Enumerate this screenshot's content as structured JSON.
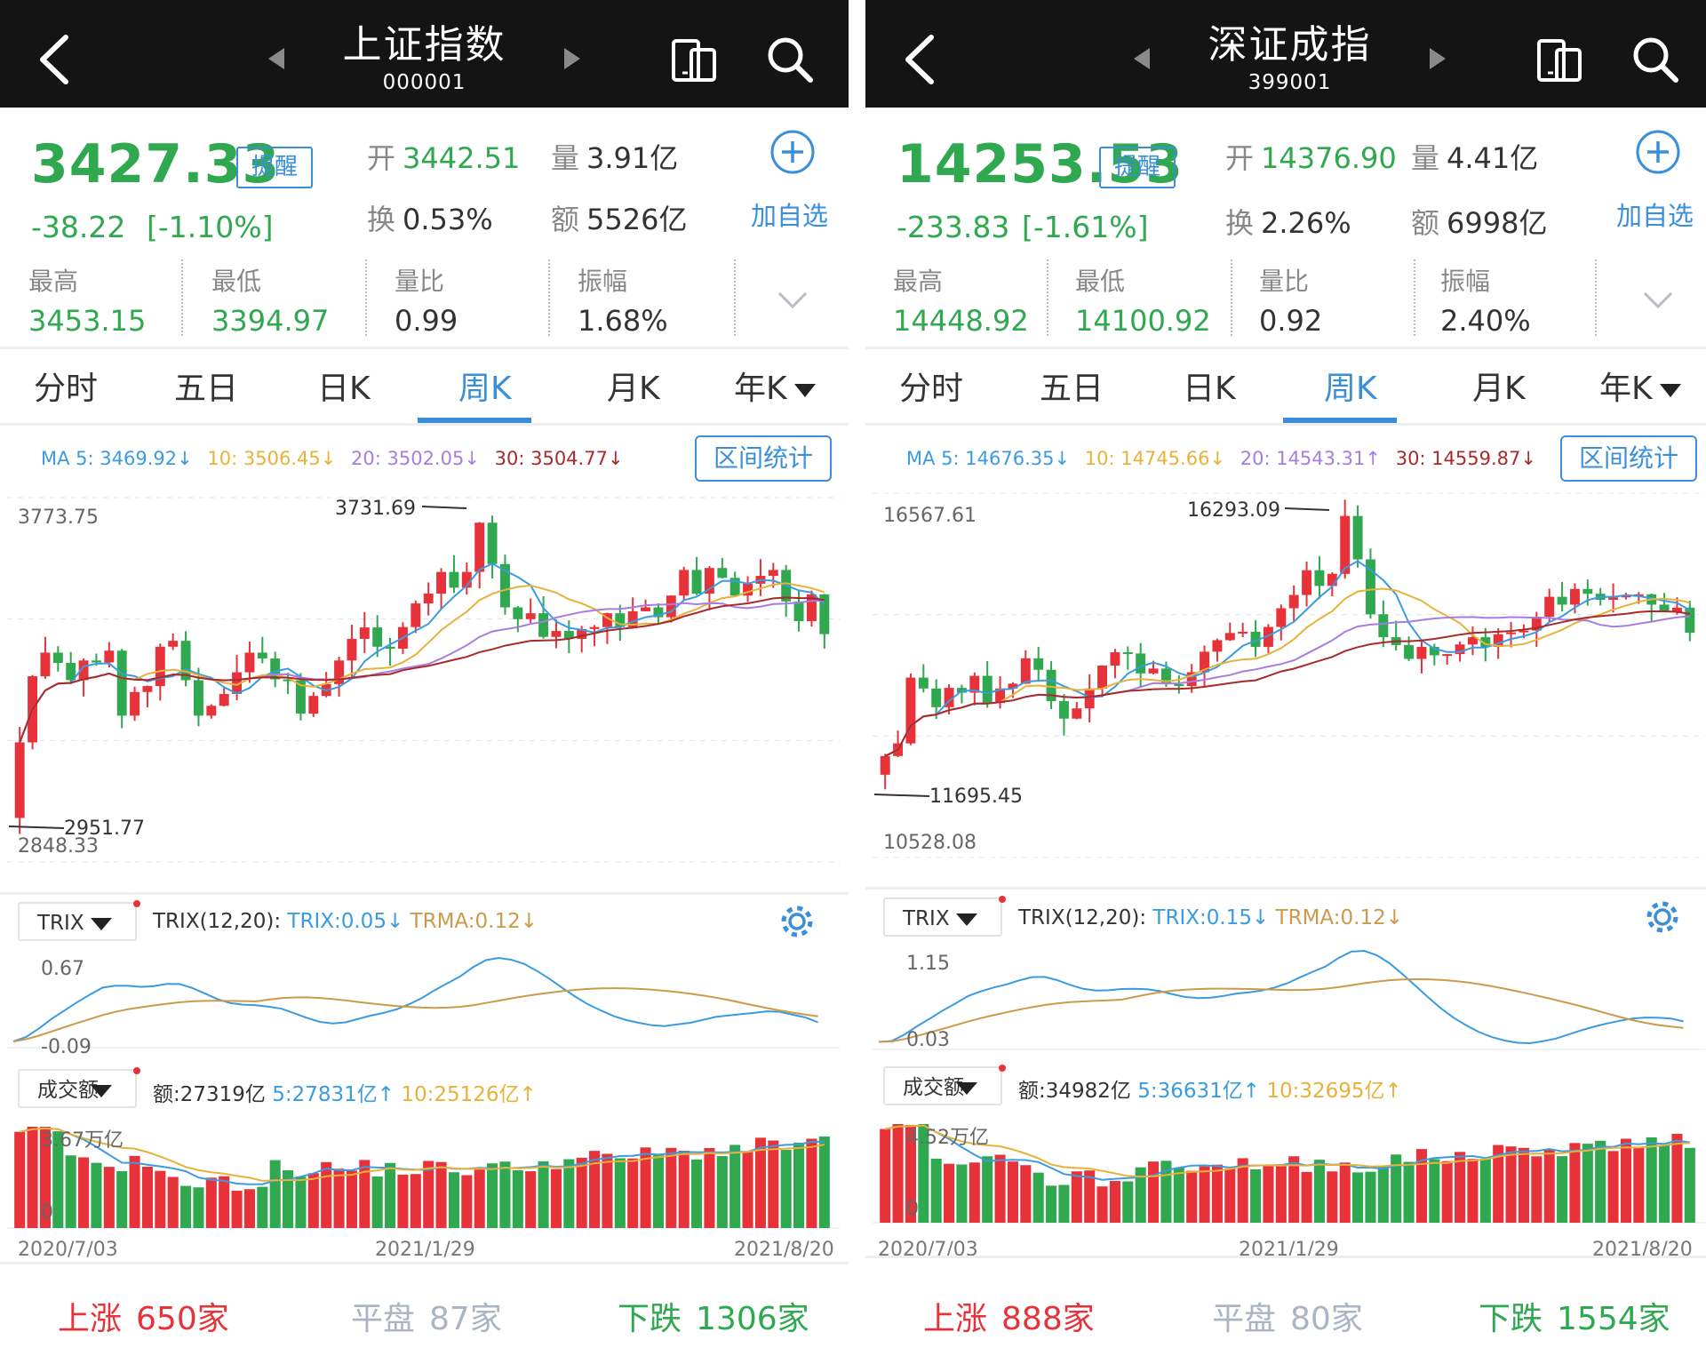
{
  "colors": {
    "up": "#e8323a",
    "down": "#2fa84f",
    "accent": "#3a8fd8",
    "ma5": "#3a9be0",
    "ma10": "#e8b23a",
    "ma20": "#a67de0",
    "ma30": "#a82a2a",
    "trix": "#3a9be0",
    "trma": "#cc9a4a"
  },
  "tabs": [
    "分时",
    "五日",
    "日K",
    "周K",
    "月K",
    "年K"
  ],
  "active_tab": "周K",
  "panels": [
    {
      "title": "上证指数",
      "code": "000001",
      "price": "3427.33",
      "remind": "提醒",
      "change": "-38.22",
      "change_pct": "[-1.10%]",
      "open_k": "开",
      "open_v": "3442.51",
      "vol_k": "量",
      "vol_v": "3.91亿",
      "turn_k": "换",
      "turn_v": "0.53%",
      "amt_k": "额",
      "amt_v": "5526亿",
      "add_watch": "加自选",
      "stats": [
        {
          "k": "最高",
          "v": "3453.15",
          "green": true
        },
        {
          "k": "最低",
          "v": "3394.97",
          "green": true
        },
        {
          "k": "量比",
          "v": "0.99",
          "green": false
        },
        {
          "k": "振幅",
          "v": "1.68%",
          "green": false
        }
      ],
      "ma": {
        "ma5": "MA 5: 3469.92↓",
        "ma10": "10: 3506.45↓",
        "ma20": "20: 3502.05↓",
        "ma30": "30: 3504.77↓"
      },
      "range_btn": "区间统计",
      "kline_max_label": "3773.75",
      "kline_min_label": "2848.33",
      "hi_tag": "3731.69",
      "lo_tag": "2951.77",
      "trix_sel": "TRIX",
      "trix_name": "TRIX(12,20):",
      "trix_v": "TRIX:0.05↓",
      "trma_v": "TRMA:0.12↓",
      "trix_max": "0.67",
      "trix_min": "-0.09",
      "vol_sel": "成交额",
      "vol_amt": "额:27319亿",
      "vol_ma5": "5:27831亿↑",
      "vol_ma10": "10:25126亿↑",
      "vol_max": "3.67万亿",
      "vol_zero": "0",
      "dates": [
        "2020/7/03",
        "2021/1/29",
        "2021/8/20"
      ],
      "bottom": {
        "up_k": "上涨",
        "up_v": "650家",
        "flat_k": "平盘",
        "flat_v": "87家",
        "down_k": "下跌",
        "down_v": "1306家"
      }
    },
    {
      "title": "深证成指",
      "code": "399001",
      "price": "14253.53",
      "remind": "提醒",
      "change": "-233.83",
      "change_pct": "[-1.61%]",
      "open_k": "开",
      "open_v": "14376.90",
      "vol_k": "量",
      "vol_v": "4.41亿",
      "turn_k": "换",
      "turn_v": "2.26%",
      "amt_k": "额",
      "amt_v": "6998亿",
      "add_watch": "加自选",
      "stats": [
        {
          "k": "最高",
          "v": "14448.92",
          "green": true
        },
        {
          "k": "最低",
          "v": "14100.92",
          "green": true
        },
        {
          "k": "量比",
          "v": "0.92",
          "green": false
        },
        {
          "k": "振幅",
          "v": "2.40%",
          "green": false
        }
      ],
      "ma": {
        "ma5": "MA 5: 14676.35↓",
        "ma10": "10: 14745.66↓",
        "ma20": "20: 14543.31↑",
        "ma30": "30: 14559.87↓"
      },
      "range_btn": "区间统计",
      "kline_max_label": "16567.61",
      "kline_min_label": "10528.08",
      "hi_tag": "16293.09",
      "lo_tag": "11695.45",
      "trix_sel": "TRIX",
      "trix_name": "TRIX(12,20):",
      "trix_v": "TRIX:0.15↓",
      "trma_v": "TRMA:0.12↓",
      "trix_max": "1.15",
      "trix_min": "0.03",
      "vol_sel": "成交额",
      "vol_amt": "额:34982亿",
      "vol_ma5": "5:36631亿↑",
      "vol_ma10": "10:32695亿↑",
      "vol_max": "4.52万亿",
      "vol_zero": "0",
      "dates": [
        "2020/7/03",
        "2021/1/29",
        "2021/8/20"
      ],
      "bottom": {
        "up_k": "上涨",
        "up_v": "888家",
        "flat_k": "平盘",
        "flat_v": "80家",
        "down_k": "下跌",
        "down_v": "1554家"
      }
    }
  ],
  "chart_data": [
    {
      "type": "candlestick",
      "title": "上证指数 周K",
      "ylim": [
        2848.33,
        3773.75
      ],
      "closes": [
        3152,
        3320,
        3380,
        3354,
        3310,
        3360,
        3355,
        3385,
        3220,
        3280,
        3295,
        3395,
        3410,
        3310,
        3220,
        3245,
        3275,
        3330,
        3380,
        3365,
        3312,
        3310,
        3225,
        3270,
        3300,
        3360,
        3415,
        3444,
        3395,
        3390,
        3445,
        3505,
        3530,
        3585,
        3545,
        3585,
        3710,
        3605,
        3495,
        3465,
        3480,
        3420,
        3435,
        3415,
        3440,
        3445,
        3480,
        3445,
        3485,
        3495,
        3470,
        3525,
        3590,
        3530,
        3595,
        3570,
        3525,
        3555,
        3575,
        3590,
        3510,
        3460,
        3528,
        3427
      ]
    },
    {
      "type": "candlestick",
      "title": "深证成指 周K",
      "ylim": [
        10528.08,
        16567.61
      ],
      "closes": [
        12210,
        12420,
        13510,
        13330,
        13020,
        13340,
        13260,
        13540,
        13090,
        13330,
        13410,
        13830,
        13640,
        13120,
        12830,
        13000,
        13330,
        13710,
        13930,
        13910,
        13580,
        13660,
        13400,
        13370,
        13600,
        13940,
        14130,
        14250,
        14270,
        14020,
        14350,
        14660,
        14880,
        15290,
        15030,
        15230,
        16190,
        15470,
        14560,
        14180,
        14050,
        13820,
        14020,
        13880,
        13900,
        14060,
        14180,
        14020,
        14230,
        14260,
        14290,
        14520,
        14850,
        14720,
        14980,
        14900,
        14800,
        14840,
        14870,
        14890,
        14720,
        14600,
        14670,
        14254
      ]
    }
  ]
}
